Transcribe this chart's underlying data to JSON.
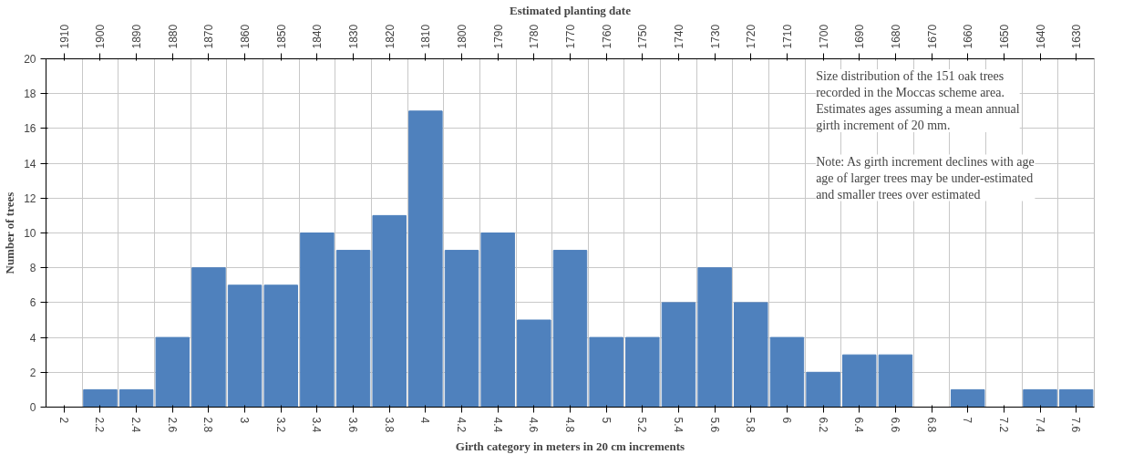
{
  "chart_data": {
    "type": "bar",
    "xlabel": "Girth category in meters in 20 cm increments",
    "ylabel": "Number of trees",
    "x2label": "Estimated planting date",
    "categories": [
      "2",
      "2.2",
      "2.4",
      "2.6",
      "2.8",
      "3",
      "3.2",
      "3.4",
      "3.6",
      "3.8",
      "4",
      "4.2",
      "4.4",
      "4.6",
      "4.8",
      "5",
      "5.2",
      "5.4",
      "5.6",
      "5.8",
      "6",
      "6.2",
      "6.4",
      "6.6",
      "6.8",
      "7",
      "7.2",
      "7.4",
      "7.6"
    ],
    "values": [
      0,
      1,
      1,
      4,
      8,
      7,
      7,
      10,
      9,
      11,
      17,
      9,
      10,
      5,
      9,
      4,
      4,
      6,
      8,
      6,
      4,
      2,
      3,
      3,
      0,
      1,
      0,
      1,
      1
    ],
    "color": "#4f81bd",
    "ylim": [
      0,
      20
    ],
    "yticks": [
      0,
      2,
      4,
      6,
      8,
      10,
      12,
      14,
      16,
      18,
      20
    ],
    "x2lim": [
      1915,
      1625
    ],
    "x2ticks": [
      1910,
      1900,
      1890,
      1880,
      1870,
      1860,
      1850,
      1840,
      1830,
      1820,
      1810,
      1800,
      1790,
      1780,
      1770,
      1760,
      1750,
      1740,
      1730,
      1720,
      1710,
      1700,
      1690,
      1680,
      1670,
      1660,
      1650,
      1640,
      1630
    ],
    "grid": true,
    "annotations": [
      "Size distribution of the 151 oak trees\nrecorded in the Moccas scheme area.\nEstimates ages assuming a mean annual\ngirth increment of 20 mm.",
      "Note: As girth increment declines with age\nage of larger trees may be under-estimated\nand  smaller trees over estimated"
    ]
  }
}
